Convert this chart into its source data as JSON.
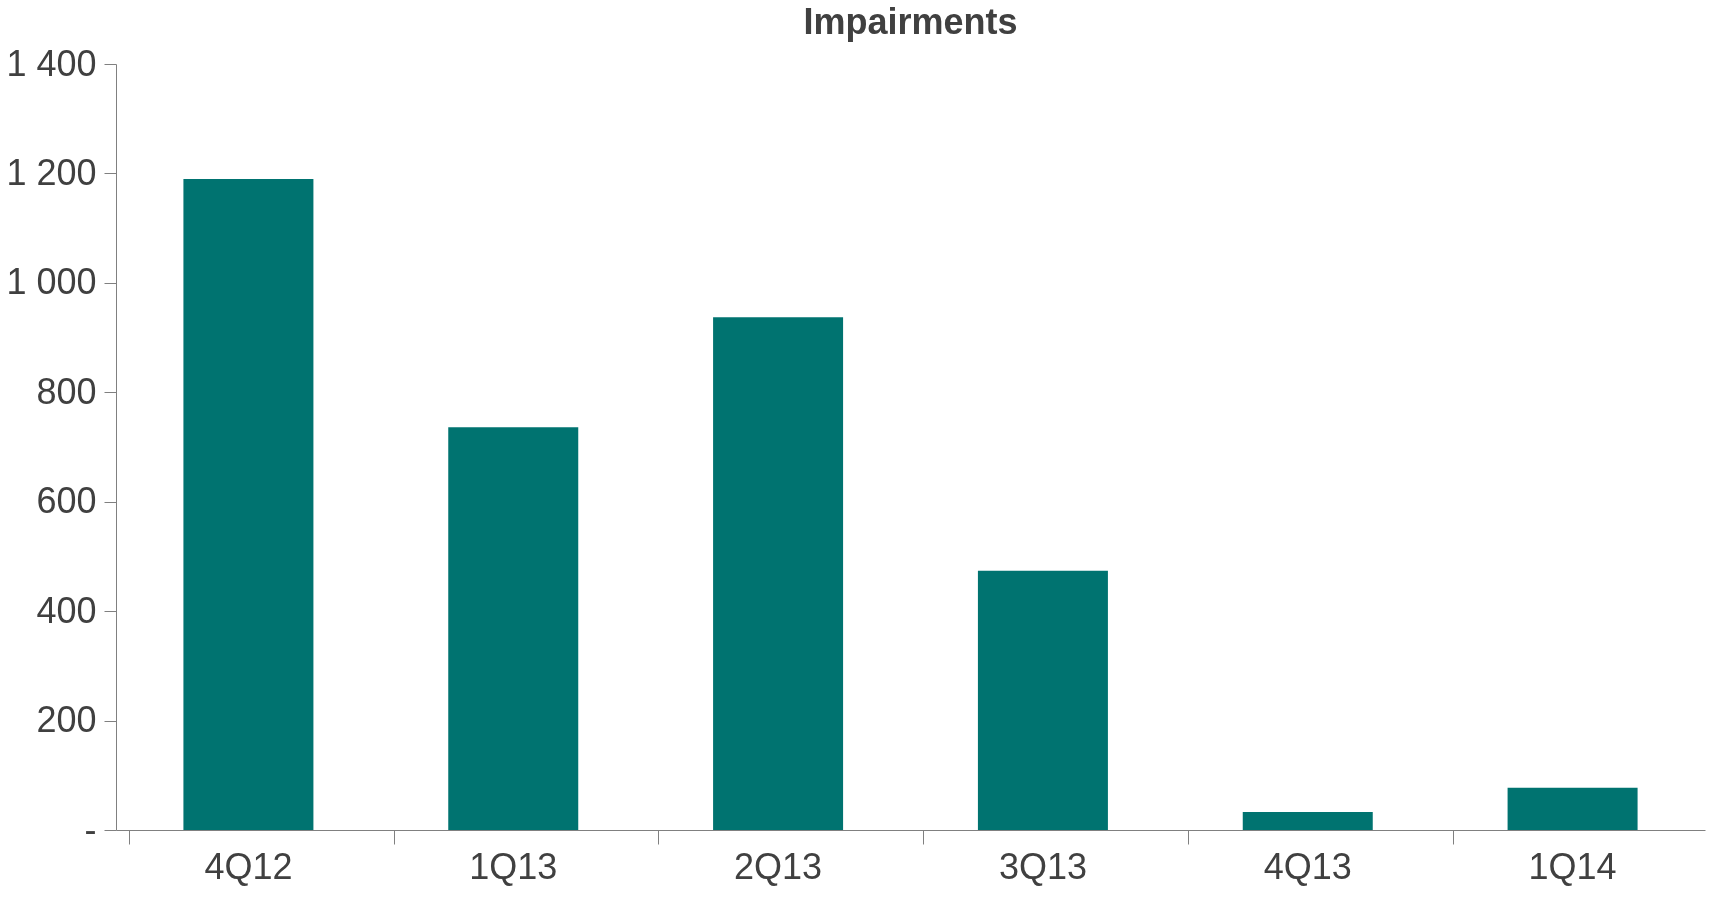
{
  "chart_data": {
    "type": "bar",
    "title": "Impairments",
    "categories": [
      "4Q12",
      "1Q13",
      "2Q13",
      "3Q13",
      "4Q13",
      "1Q14"
    ],
    "values": [
      1190,
      736,
      937,
      474,
      33,
      77
    ],
    "color": "#007370",
    "ylim": [
      0,
      1400
    ],
    "yticks": [
      {
        "value": 0,
        "label": "-"
      },
      200,
      400,
      600,
      800,
      {
        "value": 1000,
        "label": "1 000"
      },
      {
        "value": 1200,
        "label": "1 200"
      },
      {
        "value": 1400,
        "label": "1 400"
      }
    ],
    "grid": false
  }
}
